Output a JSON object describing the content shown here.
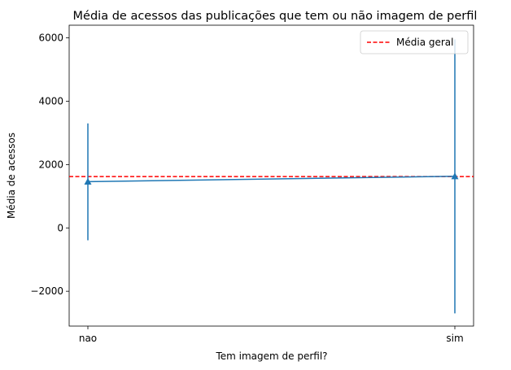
{
  "chart_data": {
    "type": "line",
    "title": "Média de acessos das publicações que tem ou não imagem de perfil",
    "xlabel": "Tem imagem de perfil?",
    "ylabel": "Média de acessos",
    "categories": [
      "nao",
      "sim"
    ],
    "series": [
      {
        "values": [
          1460,
          1630
        ],
        "error_low": [
          -390,
          -2700
        ],
        "error_high": [
          3300,
          5950
        ],
        "marker": "triangle-up",
        "color": "#1f77b4"
      }
    ],
    "reference_line": {
      "name": "Média geral",
      "value": 1620,
      "color": "#ff0000",
      "style": "dashed"
    },
    "ylim": [
      -3100,
      6400
    ],
    "yticks": [
      -2000,
      0,
      2000,
      4000,
      6000
    ],
    "ytick_labels": [
      "−2000",
      "0",
      "2000",
      "4000",
      "6000"
    ],
    "grid": false,
    "legend": "top-right"
  }
}
